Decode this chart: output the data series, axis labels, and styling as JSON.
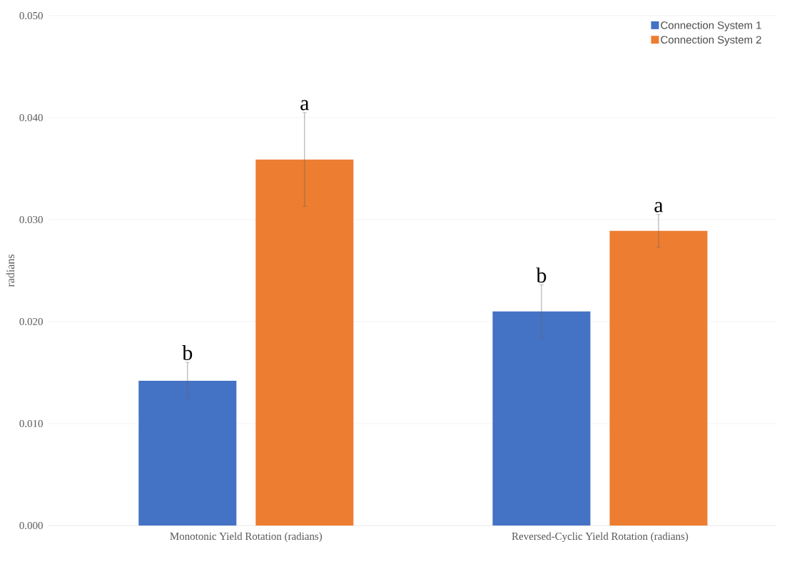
{
  "chart_data": {
    "type": "bar",
    "ylabel": "radians",
    "categories": [
      "Monotonic Yield Rotation (radians)",
      "Reversed-Cyclic Yield Rotation (radians)"
    ],
    "series": [
      {
        "name": "Connection System 1",
        "color": "#4472c4",
        "values": [
          0.0142,
          0.021
        ],
        "errors": [
          0.0018,
          0.0026
        ]
      },
      {
        "name": "Connection System 2",
        "color": "#ed7d31",
        "values": [
          0.0359,
          0.0289
        ],
        "errors": [
          0.0046,
          0.0016
        ]
      }
    ],
    "ylim": [
      0,
      0.05
    ],
    "yticks": [
      {
        "value": 0,
        "label": "0.000"
      },
      {
        "value": 0.01,
        "label": "0.010"
      },
      {
        "value": 0.02,
        "label": "0.020"
      },
      {
        "value": 0.03,
        "label": "0.030"
      },
      {
        "value": 0.04,
        "label": "0.040"
      },
      {
        "value": 0.05,
        "label": "0.050"
      }
    ],
    "grid": "y",
    "legend": "top right",
    "annotations": [
      "b",
      "a",
      "b",
      "a"
    ]
  }
}
